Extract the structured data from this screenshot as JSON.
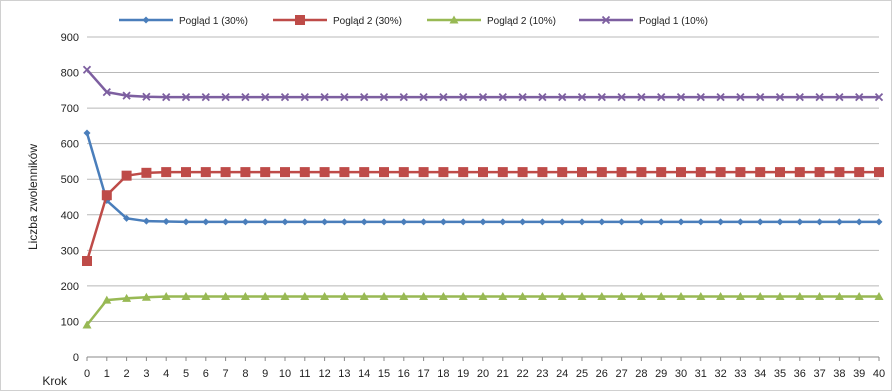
{
  "chart_data": {
    "type": "line",
    "title": "",
    "xlabel": "Krok",
    "ylabel": "Liczba zwolenników",
    "ylim": [
      0,
      900
    ],
    "yticks": [
      0,
      100,
      200,
      300,
      400,
      500,
      600,
      700,
      800,
      900
    ],
    "x": [
      0,
      1,
      2,
      3,
      4,
      5,
      6,
      7,
      8,
      9,
      10,
      11,
      12,
      13,
      14,
      15,
      16,
      17,
      18,
      19,
      20,
      21,
      22,
      23,
      24,
      25,
      26,
      27,
      28,
      29,
      30,
      31,
      32,
      33,
      34,
      35,
      36,
      37,
      38,
      39,
      40
    ],
    "grid": true,
    "legend_position": "top",
    "series": [
      {
        "name": "Pogląd 1 (30%)",
        "color": "#4a7ebb",
        "marker": "diamond",
        "values": [
          630,
          440,
          390,
          382,
          381,
          380,
          380,
          380,
          380,
          380,
          380,
          380,
          380,
          380,
          380,
          380,
          380,
          380,
          380,
          380,
          380,
          380,
          380,
          380,
          380,
          380,
          380,
          380,
          380,
          380,
          380,
          380,
          380,
          380,
          380,
          380,
          380,
          380,
          380,
          380,
          380
        ]
      },
      {
        "name": "Pogląd 2 (30%)",
        "color": "#be4b48",
        "marker": "square",
        "values": [
          270,
          455,
          510,
          518,
          520,
          520,
          520,
          520,
          520,
          520,
          520,
          520,
          520,
          520,
          520,
          520,
          520,
          520,
          520,
          520,
          520,
          520,
          520,
          520,
          520,
          520,
          520,
          520,
          520,
          520,
          520,
          520,
          520,
          520,
          520,
          520,
          520,
          520,
          520,
          520,
          520
        ]
      },
      {
        "name": "Pogląd 2 (10%)",
        "color": "#98b954",
        "marker": "triangle",
        "values": [
          90,
          160,
          165,
          168,
          170,
          170,
          170,
          170,
          170,
          170,
          170,
          170,
          170,
          170,
          170,
          170,
          170,
          170,
          170,
          170,
          170,
          170,
          170,
          170,
          170,
          170,
          170,
          170,
          170,
          170,
          170,
          170,
          170,
          170,
          170,
          170,
          170,
          170,
          170,
          170,
          170
        ]
      },
      {
        "name": "Pogląd 1 (10%)",
        "color": "#7d5fa0",
        "marker": "x",
        "values": [
          808,
          745,
          735,
          732,
          731,
          731,
          731,
          731,
          731,
          731,
          731,
          731,
          731,
          731,
          731,
          731,
          731,
          731,
          731,
          731,
          731,
          731,
          731,
          731,
          731,
          731,
          731,
          731,
          731,
          731,
          731,
          731,
          731,
          731,
          731,
          731,
          731,
          731,
          731,
          731,
          731
        ]
      }
    ]
  }
}
